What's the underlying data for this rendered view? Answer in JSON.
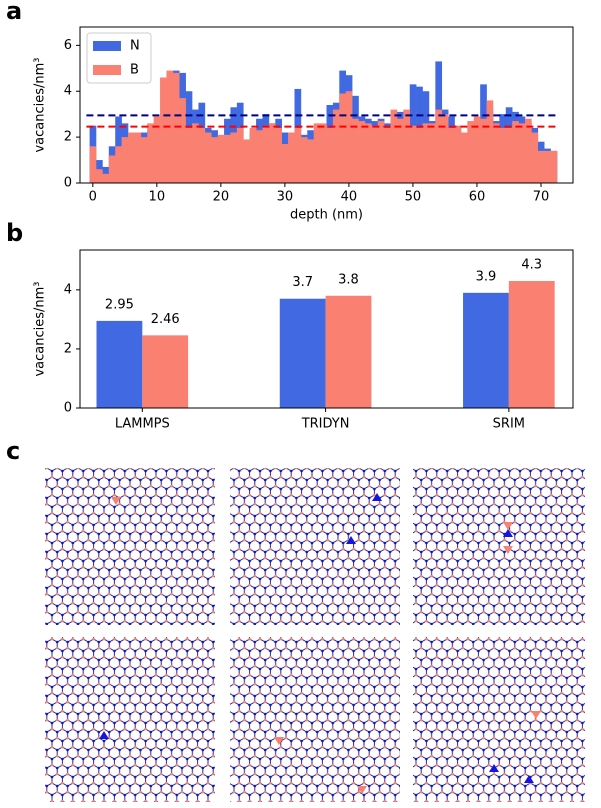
{
  "panel_labels": [
    "a",
    "b",
    "c"
  ],
  "chart_data": [
    {
      "type": "histogram",
      "xlabel": "depth (nm)",
      "ylabel": "vacancies/nm³",
      "bins": [
        -0.5,
        0.5,
        1.5,
        2.5,
        3.5,
        4.5,
        5.5,
        6.5,
        7.5,
        8.5,
        9.5,
        10.5,
        11.5,
        12.5,
        13.5,
        14.5,
        15.5,
        16.5,
        17.5,
        18.5,
        19.5,
        20.5,
        21.5,
        22.5,
        23.5,
        24.5,
        25.5,
        26.5,
        27.5,
        28.5,
        29.5,
        30.5,
        31.5,
        32.5,
        33.5,
        34.5,
        35.5,
        36.5,
        37.5,
        38.5,
        39.5,
        40.5,
        41.5,
        42.5,
        43.5,
        44.5,
        45.5,
        46.5,
        47.5,
        48.5,
        49.5,
        50.5,
        51.5,
        52.5,
        53.5,
        54.5,
        55.5,
        56.5,
        57.5,
        58.5,
        59.5,
        60.5,
        61.5,
        62.5,
        63.5,
        64.5,
        65.5,
        66.5,
        67.5,
        68.5,
        69.5,
        70.5,
        71.5,
        72.5
      ],
      "series": [
        {
          "name": "N",
          "color": "#4169e1",
          "values": [
            2.5,
            1.0,
            0.7,
            1.6,
            2.9,
            2.6,
            2.0,
            2.0,
            2.2,
            2.3,
            2.5,
            2.4,
            3.7,
            4.9,
            4.8,
            4.0,
            3.2,
            3.5,
            2.4,
            2.3,
            1.5,
            2.8,
            3.3,
            3.5,
            1.4,
            2.2,
            2.8,
            3.0,
            2.6,
            2.8,
            2.2,
            1.6,
            4.1,
            2.1,
            2.3,
            2.0,
            2.4,
            3.4,
            3.5,
            4.9,
            4.7,
            3.8,
            2.9,
            2.8,
            2.7,
            2.8,
            2.6,
            2.7,
            3.1,
            1.9,
            4.3,
            4.2,
            4.0,
            2.7,
            5.3,
            3.2,
            2.9,
            2.3,
            2.1,
            2.0,
            2.6,
            4.3,
            3.2,
            2.7,
            3.0,
            3.3,
            3.1,
            2.9,
            2.6,
            2.4,
            1.8,
            1.5,
            1.4
          ]
        },
        {
          "name": "B",
          "color": "#fa8072",
          "values": [
            1.6,
            0.6,
            0.4,
            1.2,
            1.6,
            2.0,
            2.2,
            2.2,
            2.0,
            2.6,
            2.9,
            4.6,
            4.9,
            4.8,
            3.7,
            2.4,
            2.6,
            2.4,
            2.2,
            2.0,
            2.1,
            2.1,
            2.2,
            2.4,
            1.9,
            2.4,
            2.3,
            2.5,
            2.6,
            2.4,
            1.7,
            2.2,
            2.4,
            2.0,
            1.9,
            2.6,
            2.6,
            2.4,
            3.2,
            3.9,
            4.0,
            2.8,
            2.7,
            2.6,
            2.5,
            2.7,
            2.4,
            3.2,
            2.8,
            3.2,
            2.5,
            2.4,
            2.6,
            2.6,
            3.2,
            3.0,
            2.4,
            2.5,
            2.2,
            2.7,
            2.9,
            2.8,
            3.6,
            2.6,
            2.4,
            2.4,
            2.7,
            2.6,
            2.8,
            2.2,
            1.4,
            1.4,
            1.4
          ]
        }
      ],
      "reference_lines": [
        {
          "value": 2.95,
          "color": "#000080"
        },
        {
          "value": 2.46,
          "color": "#ff0000"
        }
      ],
      "xlim": [
        -2,
        75
      ],
      "xticks": [
        0,
        10,
        20,
        30,
        40,
        50,
        60,
        70
      ],
      "ylim": [
        0,
        6.8
      ],
      "yticks": [
        0,
        2,
        4,
        6
      ],
      "legend": "upper left",
      "grid": false
    },
    {
      "type": "bar",
      "ylabel": "vacancies/nm³",
      "categories": [
        "LAMMPS",
        "TRIDYN",
        "SRIM"
      ],
      "series": [
        {
          "name": "N",
          "color": "#4169e1",
          "values": [
            2.95,
            3.7,
            3.9
          ]
        },
        {
          "name": "B",
          "color": "#fa8072",
          "values": [
            2.46,
            3.8,
            4.3
          ]
        }
      ],
      "ylim": [
        0,
        5.35
      ],
      "yticks": [
        0,
        2,
        4
      ],
      "grid": false
    }
  ]
}
